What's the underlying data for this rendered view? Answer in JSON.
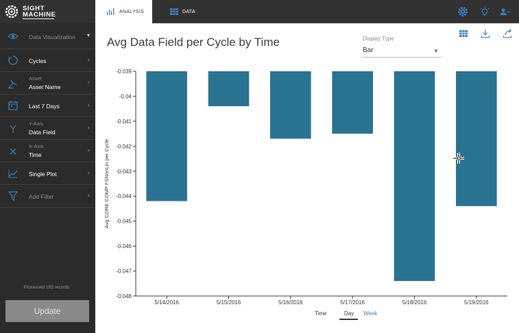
{
  "app": {
    "logo": {
      "line1": "SIGHT",
      "line2": "MACHINE"
    },
    "tabs": [
      {
        "label": "ANALYSIS",
        "icon": "bar-chart-icon",
        "active": true
      },
      {
        "label": "DATA",
        "icon": "table-icon",
        "active": false
      }
    ],
    "top_icons": [
      "gear-icon",
      "lightbulb-icon",
      "user-icon"
    ]
  },
  "sidebar": {
    "items": [
      {
        "label": "Data Visualization",
        "icon": "eye-icon",
        "dim": true,
        "chevron": "▾"
      },
      {
        "label": "Cycles",
        "icon": "cycle-icon",
        "chevron": "›"
      },
      {
        "sub": "Asset",
        "label": "Asset Name",
        "icon": "asset-icon",
        "chevron": "›"
      },
      {
        "label": "Last 7 Days",
        "icon": "calendar-icon",
        "chevron": "›"
      },
      {
        "sub": "Y-Axis",
        "label": "Data Field",
        "icon": "y-axis-icon",
        "chevron": "›"
      },
      {
        "sub": "X-Axis",
        "label": "Time",
        "icon": "x-axis-icon",
        "chevron": "›"
      },
      {
        "label": "Single Plot",
        "icon": "line-chart-icon",
        "chevron": "›"
      },
      {
        "label": "Add Filter",
        "icon": "filter-icon",
        "dim": true,
        "chevron": "›"
      }
    ],
    "processed": "Processed 205 records",
    "update_label": "Update"
  },
  "main": {
    "title": "Avg Data Field per Cycle by Time",
    "display_type": {
      "label": "Display Type",
      "value": "Bar"
    },
    "toolbar_icons": [
      "table-icon",
      "download-icon",
      "share-icon"
    ],
    "x_axis": {
      "title": "Time",
      "options": [
        "Day",
        "Week"
      ],
      "selected": "Day"
    }
  },
  "colors": {
    "bar": "#2a7391",
    "topbar": "#323232",
    "sidebar": "#2b2b2b",
    "accent": "#3a80c0"
  },
  "chart_data": {
    "type": "bar",
    "title": "",
    "xlabel": "Time",
    "ylabel": "Avg CORE COMP FSNonLin per Cycle",
    "categories": [
      "5/14/2016",
      "5/15/2016",
      "5/16/2016",
      "5/17/2016",
      "5/18/2016",
      "5/19/2016"
    ],
    "values": [
      -0.0442,
      -0.0404,
      -0.0417,
      -0.0415,
      -0.0474,
      -0.0444
    ],
    "ylim": [
      -0.048,
      -0.039
    ],
    "yticks": [
      -0.039,
      -0.04,
      -0.041,
      -0.042,
      -0.043,
      -0.044,
      -0.045,
      -0.046,
      -0.047,
      -0.048
    ],
    "ytick_labels": [
      "-0.039",
      "-0.04",
      "-0.041",
      "-0.042",
      "-0.043",
      "-0.044",
      "-0.045",
      "-0.046",
      "-0.047",
      "-0.048"
    ],
    "bar_baseline": -0.039,
    "grid": false,
    "legend": "none"
  }
}
